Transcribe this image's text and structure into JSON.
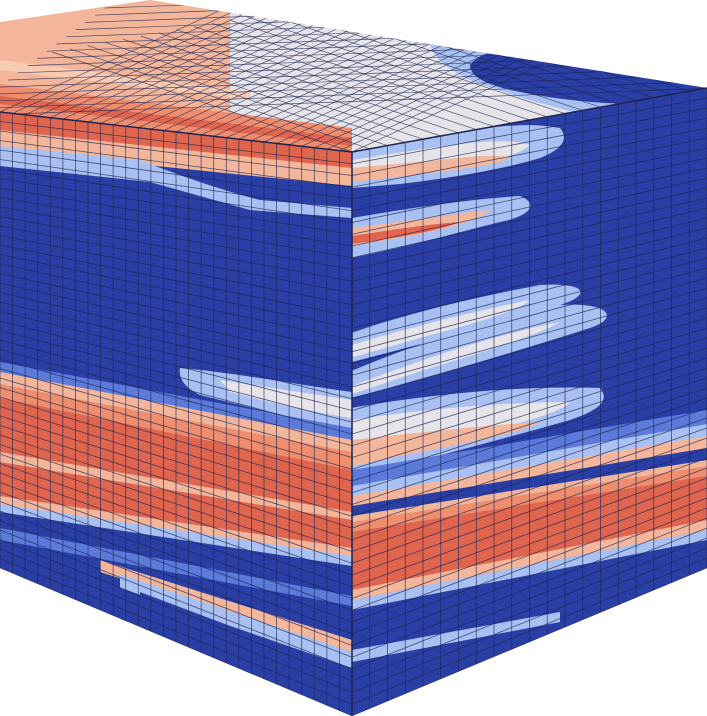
{
  "figure": {
    "colors": {
      "background": "#ffffff",
      "deep_blue": "#2a3fa6",
      "mid_blue": "#5b7ad9",
      "light_blue": "#a9c1f2",
      "pale": "#e6e4e8",
      "peach": "#f3b69b",
      "salmon": "#ee8e6f",
      "red_orange": "#e0654f",
      "grid_line": "#1b2450"
    },
    "mesh": {
      "front_columns": 28,
      "front_rows": 48,
      "side_columns": 20
    }
  }
}
